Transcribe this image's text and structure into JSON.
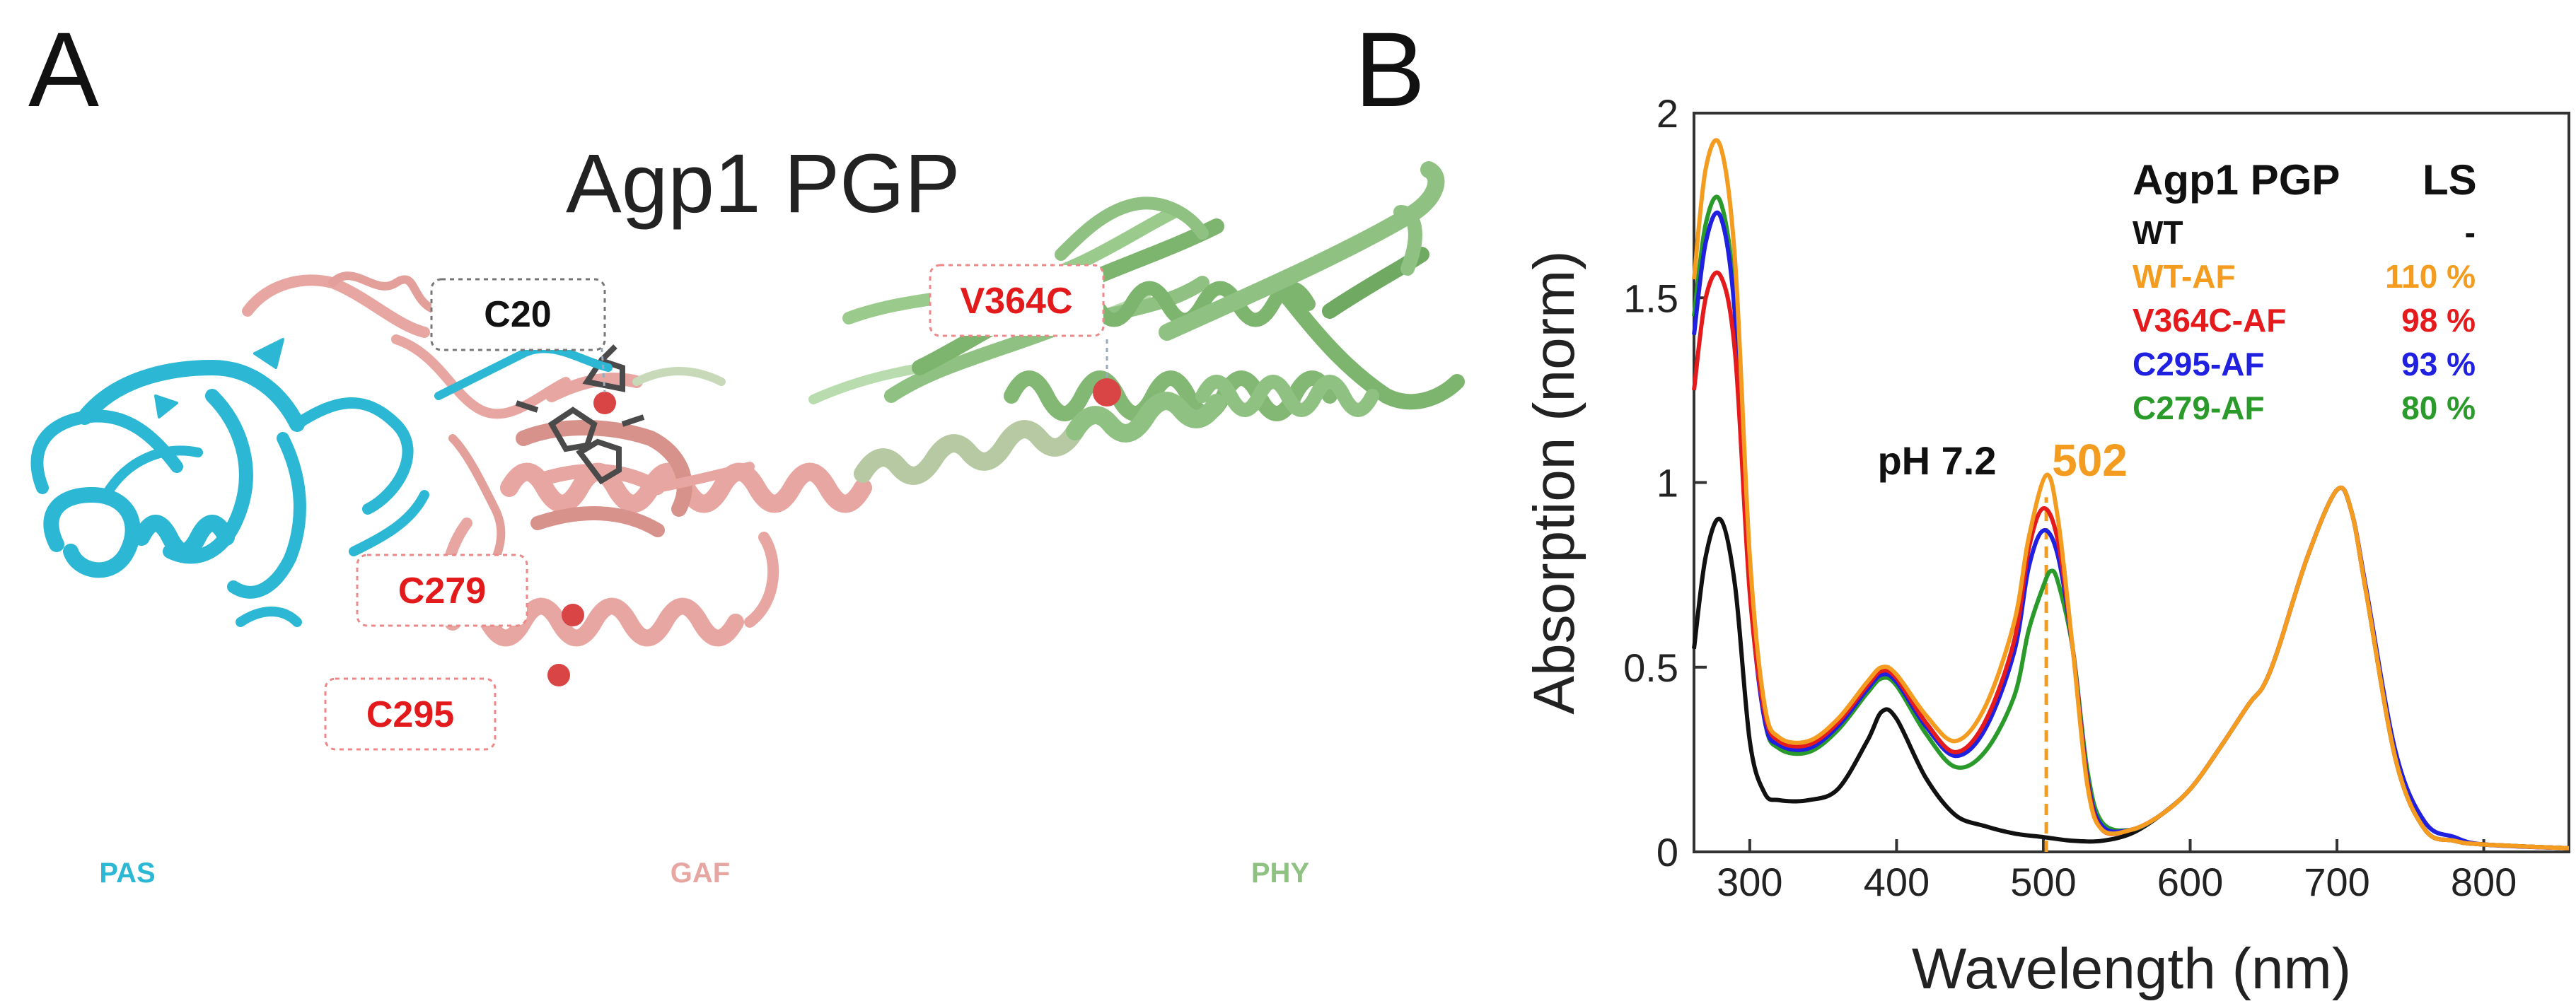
{
  "panel_a": {
    "letter": "A",
    "title": "Agp1 PGP",
    "labels": {
      "c20": "C20",
      "v364c": "V364C",
      "c279": "C279",
      "c295": "C295"
    },
    "domains": {
      "pas": "PAS",
      "gaf": "GAF",
      "phy": "PHY"
    },
    "colors": {
      "pas": "#2cb8d4",
      "gaf": "#e8a6a2",
      "phy": "#8fc282",
      "label_red": "#e31a1c",
      "marker": "#d94545"
    }
  },
  "panel_b": {
    "letter": "B",
    "legend_title": "Agp1 PGP",
    "legend_ls_header": "LS",
    "ph_label": "pH 7.2",
    "peak_label": "502",
    "legend": [
      {
        "name": "WT",
        "ls": "-",
        "color": "#111111"
      },
      {
        "name": "WT-AF",
        "ls": "110 %",
        "color": "#f39c1f"
      },
      {
        "name": "V364C-AF",
        "ls": "98 %",
        "color": "#e41a1c"
      },
      {
        "name": "C295-AF",
        "ls": "93 %",
        "color": "#2020e0"
      },
      {
        "name": "C279-AF",
        "ls": "80 %",
        "color": "#2a9a2a"
      }
    ]
  },
  "chart_data": {
    "type": "line",
    "title": "",
    "xlabel": "Wavelength (nm)",
    "ylabel": "Absorption (norm)",
    "xlim": [
      262,
      858
    ],
    "ylim": [
      0,
      2
    ],
    "xticks": [
      "300",
      "400",
      "500",
      "600",
      "700",
      "800"
    ],
    "yticks": [
      "0",
      "0.5",
      "1",
      "1.5",
      "2"
    ],
    "grid": false,
    "legend_position": "top-right",
    "series": [
      {
        "name": "WT",
        "color": "#111111",
        "x": [
          262,
          270,
          280,
          290,
          300,
          310,
          320,
          340,
          360,
          380,
          390,
          400,
          420,
          440,
          460,
          480,
          500,
          520,
          540,
          560,
          580,
          600,
          620,
          640,
          650,
          660,
          680,
          700,
          710,
          720,
          740,
          760,
          780,
          800,
          858
        ],
        "y": [
          0.55,
          0.8,
          0.9,
          0.72,
          0.3,
          0.16,
          0.14,
          0.14,
          0.17,
          0.3,
          0.38,
          0.36,
          0.2,
          0.1,
          0.07,
          0.05,
          0.04,
          0.03,
          0.03,
          0.05,
          0.1,
          0.17,
          0.28,
          0.4,
          0.45,
          0.55,
          0.8,
          0.98,
          0.92,
          0.7,
          0.25,
          0.06,
          0.03,
          0.02,
          0.01
        ]
      },
      {
        "name": "WT-AF",
        "color": "#f39c1f",
        "x": [
          262,
          270,
          280,
          290,
          300,
          310,
          320,
          340,
          360,
          380,
          390,
          400,
          420,
          440,
          460,
          480,
          490,
          502,
          510,
          520,
          530,
          540,
          560,
          580,
          600,
          620,
          640,
          650,
          660,
          680,
          700,
          710,
          720,
          740,
          760,
          780,
          800,
          858
        ],
        "y": [
          1.55,
          1.85,
          1.91,
          1.6,
          0.8,
          0.4,
          0.31,
          0.3,
          0.36,
          0.46,
          0.5,
          0.48,
          0.37,
          0.3,
          0.39,
          0.62,
          0.85,
          1.02,
          0.9,
          0.55,
          0.18,
          0.06,
          0.06,
          0.1,
          0.17,
          0.28,
          0.4,
          0.45,
          0.55,
          0.8,
          0.98,
          0.92,
          0.7,
          0.25,
          0.06,
          0.03,
          0.02,
          0.01
        ]
      },
      {
        "name": "V364C-AF",
        "color": "#e41a1c",
        "x": [
          262,
          270,
          280,
          290,
          300,
          310,
          320,
          340,
          360,
          380,
          390,
          400,
          420,
          440,
          460,
          480,
          490,
          500,
          510,
          520,
          530,
          540,
          560,
          580,
          600,
          620,
          640,
          650,
          660,
          680,
          700,
          710,
          720,
          740,
          760,
          780,
          800,
          858
        ],
        "y": [
          1.25,
          1.5,
          1.56,
          1.35,
          0.7,
          0.38,
          0.3,
          0.29,
          0.35,
          0.45,
          0.49,
          0.47,
          0.35,
          0.27,
          0.35,
          0.57,
          0.82,
          0.93,
          0.84,
          0.55,
          0.19,
          0.06,
          0.06,
          0.1,
          0.17,
          0.28,
          0.4,
          0.45,
          0.55,
          0.8,
          0.98,
          0.92,
          0.7,
          0.25,
          0.06,
          0.03,
          0.02,
          0.01
        ]
      },
      {
        "name": "C295-AF",
        "color": "#2020e0",
        "x": [
          262,
          270,
          280,
          290,
          300,
          310,
          320,
          340,
          360,
          380,
          390,
          400,
          420,
          440,
          460,
          480,
          490,
          500,
          510,
          520,
          530,
          540,
          560,
          580,
          600,
          620,
          640,
          650,
          660,
          680,
          700,
          710,
          720,
          740,
          760,
          780,
          800,
          858
        ],
        "y": [
          1.4,
          1.65,
          1.72,
          1.45,
          0.72,
          0.36,
          0.29,
          0.28,
          0.34,
          0.44,
          0.48,
          0.46,
          0.34,
          0.26,
          0.33,
          0.54,
          0.77,
          0.87,
          0.8,
          0.55,
          0.2,
          0.07,
          0.06,
          0.1,
          0.17,
          0.28,
          0.4,
          0.45,
          0.55,
          0.8,
          0.98,
          0.92,
          0.71,
          0.27,
          0.08,
          0.04,
          0.02,
          0.01
        ]
      },
      {
        "name": "C279-AF",
        "color": "#2a9a2a",
        "x": [
          262,
          270,
          280,
          290,
          300,
          310,
          320,
          340,
          360,
          380,
          390,
          400,
          420,
          440,
          460,
          480,
          490,
          500,
          505,
          510,
          520,
          530,
          540,
          560,
          580,
          600,
          620,
          640,
          650,
          660,
          680,
          700,
          710,
          720,
          740,
          760,
          780,
          800,
          858
        ],
        "y": [
          1.45,
          1.7,
          1.76,
          1.48,
          0.73,
          0.36,
          0.28,
          0.27,
          0.33,
          0.43,
          0.47,
          0.45,
          0.32,
          0.23,
          0.27,
          0.42,
          0.6,
          0.72,
          0.76,
          0.73,
          0.55,
          0.22,
          0.08,
          0.06,
          0.1,
          0.17,
          0.28,
          0.4,
          0.45,
          0.55,
          0.8,
          0.98,
          0.92,
          0.7,
          0.25,
          0.06,
          0.03,
          0.02,
          0.01
        ]
      }
    ],
    "annotations": [
      {
        "text": "pH 7.2",
        "x": 440,
        "y": 1.03
      },
      {
        "text": "502",
        "x": 502,
        "y": 1.03,
        "vline_x": 502
      }
    ]
  }
}
